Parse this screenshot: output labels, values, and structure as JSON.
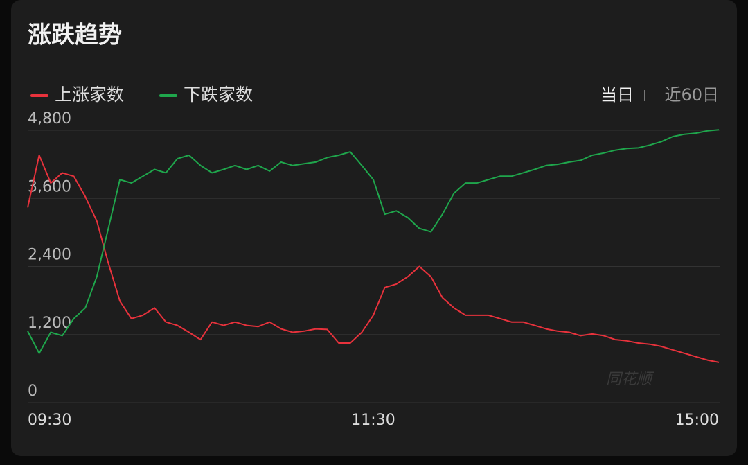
{
  "chart_data": {
    "type": "line",
    "title": "涨跌趋势",
    "range_options": [
      "当日",
      "近60日"
    ],
    "watermark": "同花顺",
    "categories": [
      "09:30",
      null,
      null,
      null,
      null,
      null,
      null,
      null,
      null,
      null,
      null,
      null,
      null,
      null,
      null,
      null,
      null,
      null,
      null,
      null,
      null,
      null,
      null,
      null,
      null,
      null,
      null,
      null,
      null,
      null,
      "11:30",
      null,
      null,
      null,
      null,
      null,
      null,
      null,
      null,
      null,
      null,
      null,
      null,
      null,
      null,
      null,
      null,
      null,
      null,
      null,
      null,
      null,
      null,
      null,
      null,
      null,
      null,
      null,
      null,
      null,
      "15:00"
    ],
    "series": [
      {
        "name": "上涨家数",
        "color": "#e8323c",
        "values": [
          3440,
          4360,
          3870,
          4050,
          3990,
          3630,
          3200,
          2460,
          1790,
          1480,
          1540,
          1670,
          1420,
          1360,
          1240,
          1110,
          1420,
          1360,
          1420,
          1360,
          1340,
          1420,
          1300,
          1240,
          1260,
          1300,
          1290,
          1050,
          1050,
          1240,
          1540,
          2030,
          2090,
          2220,
          2400,
          2220,
          1850,
          1670,
          1540,
          1540,
          1540,
          1480,
          1420,
          1420,
          1360,
          1300,
          1260,
          1240,
          1180,
          1210,
          1180,
          1110,
          1090,
          1050,
          1030,
          990,
          930,
          870,
          810,
          750,
          710
        ]
      },
      {
        "name": "下跌家数",
        "color": "#1fa64c",
        "values": [
          1260,
          870,
          1240,
          1180,
          1480,
          1670,
          2220,
          3070,
          3930,
          3870,
          3990,
          4110,
          4050,
          4300,
          4360,
          4180,
          4050,
          4110,
          4180,
          4110,
          4180,
          4080,
          4240,
          4180,
          4210,
          4240,
          4320,
          4360,
          4420,
          4180,
          3930,
          3320,
          3380,
          3260,
          3070,
          3010,
          3320,
          3690,
          3870,
          3870,
          3930,
          3990,
          3990,
          4050,
          4110,
          4180,
          4200,
          4240,
          4270,
          4360,
          4400,
          4450,
          4480,
          4490,
          4540,
          4600,
          4690,
          4730,
          4750,
          4790,
          4810
        ]
      }
    ],
    "ylim": [
      0,
      4800
    ],
    "yticks": [
      0,
      {
        "value": 1200,
        "label": "1,200"
      },
      {
        "value": 2400,
        "label": "2,400"
      },
      {
        "value": 3600,
        "label": "3,600"
      },
      {
        "value": 4800,
        "label": "4,800"
      }
    ],
    "grid": true
  }
}
